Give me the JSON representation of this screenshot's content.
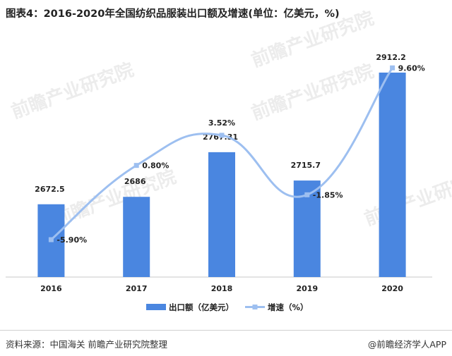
{
  "title": "图表4：2016-2020年全国纺织品服装出口额及增速(单位：亿美元，%)",
  "chart_data": {
    "type": "bar",
    "categories": [
      "2016",
      "2017",
      "2018",
      "2019",
      "2020"
    ],
    "series": [
      {
        "name": "出口额（亿美元）",
        "type": "bar",
        "values": [
          2672.5,
          2686,
          2767.31,
          2715.7,
          2912.2
        ],
        "labels": [
          "2672.5",
          "2686",
          "2767.31",
          "2715.7",
          "2912.2"
        ],
        "color": "#4a86e0"
      },
      {
        "name": "增速（%）",
        "type": "line",
        "smooth": true,
        "values": [
          -5.9,
          0.8,
          3.52,
          -1.85,
          9.6
        ],
        "labels": [
          "-5.90%",
          "0.80%",
          "3.52%",
          "-1.85%",
          "9.60%"
        ],
        "color": "#9dbff0"
      }
    ],
    "legend_position": "bottom",
    "grid": false
  },
  "watermark": "前瞻产业研究院",
  "source": "资料来源：中国海关 前瞻产业研究院整理",
  "brand": "@前瞻经济学人APP"
}
